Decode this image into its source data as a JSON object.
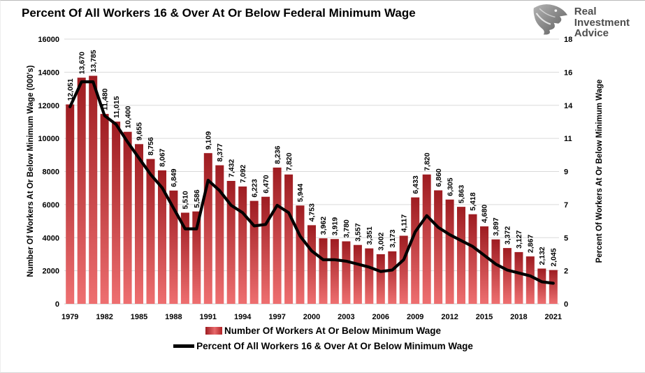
{
  "header": {
    "title": "Percent Of All Workers 16 & Over At Or Below Federal Minimum Wage",
    "logo": {
      "icon": "eagle-icon",
      "lines": [
        "Real",
        "Investment",
        "Advice"
      ]
    }
  },
  "chart_data": {
    "type": "bar",
    "title": "Percent Of All Workers 16 & Over At Or Below Federal Minimum Wage",
    "years": [
      1979,
      1980,
      1981,
      1982,
      1983,
      1984,
      1985,
      1986,
      1987,
      1988,
      1989,
      1990,
      1991,
      1992,
      1993,
      1994,
      1995,
      1996,
      1997,
      1998,
      1999,
      2000,
      2001,
      2002,
      2003,
      2004,
      2005,
      2006,
      2007,
      2008,
      2009,
      2010,
      2011,
      2012,
      2013,
      2014,
      2015,
      2016,
      2017,
      2018,
      2019,
      2020,
      2021
    ],
    "series": [
      {
        "name": "Number Of Workers At Or Below Minimum Wage",
        "type": "bar",
        "axis": "left",
        "values": [
          12051,
          13670,
          13785,
          11480,
          11015,
          10400,
          9655,
          8756,
          8067,
          6849,
          5510,
          5586,
          9109,
          8377,
          7432,
          7092,
          6223,
          6470,
          8236,
          7820,
          5944,
          4753,
          3962,
          3919,
          3780,
          3557,
          3351,
          3002,
          3173,
          4117,
          6433,
          7820,
          6860,
          6305,
          5863,
          5418,
          4680,
          3897,
          3372,
          3127,
          2867,
          2132,
          2045
        ]
      },
      {
        "name": "Percent Of All Workers 16 & Over At Or Below Minimum Wage",
        "type": "line",
        "axis": "right",
        "values": [
          13.4,
          15.1,
          15.1,
          12.8,
          12.2,
          11.0,
          9.9,
          8.8,
          7.9,
          6.5,
          5.1,
          5.1,
          8.4,
          7.7,
          6.7,
          6.2,
          5.3,
          5.4,
          6.7,
          6.2,
          4.6,
          3.6,
          3.0,
          3.0,
          2.9,
          2.7,
          2.5,
          2.2,
          2.3,
          3.0,
          4.9,
          6.0,
          5.2,
          4.7,
          4.3,
          3.9,
          3.3,
          2.7,
          2.3,
          2.1,
          1.9,
          1.5,
          1.4
        ]
      }
    ],
    "left_axis": {
      "title": "Number Of Workers At Or Below Minimum Wage (000's)",
      "min": 0,
      "max": 16000,
      "ticks": [
        0,
        2000,
        4000,
        6000,
        8000,
        10000,
        12000,
        14000,
        16000
      ]
    },
    "right_axis": {
      "title": "Percent Of Workers At Or Below Minimum Wage",
      "min": 0,
      "max": 18,
      "tick_labels": [
        "0",
        "2",
        "5",
        "7",
        "9",
        "11",
        "14",
        "16",
        "18"
      ]
    },
    "x_axis": {
      "tick_years": [
        1979,
        1982,
        1985,
        1988,
        1991,
        1994,
        1997,
        2000,
        2003,
        2006,
        2009,
        2012,
        2015,
        2018,
        2021
      ]
    },
    "grid": true,
    "legend_position": "bottom",
    "colors": {
      "bar_top": "#9E1C21",
      "bar_bottom": "#EE6F70",
      "line": "#000000",
      "grid": "#DADADA",
      "axis_line": "#C9C9C9"
    }
  },
  "legend": {
    "items": [
      {
        "label": "Number Of Workers At Or Below Minimum Wage",
        "marker": "bar-swatch"
      },
      {
        "label": "Percent Of All Workers 16 & Over At Or Below Minimum Wage",
        "marker": "line-swatch"
      }
    ]
  }
}
